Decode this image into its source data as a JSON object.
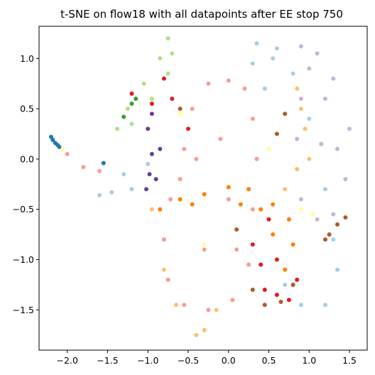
{
  "chart_data": {
    "type": "scatter",
    "title": "t-SNE on flow18 with all datapoints after EE stop 750",
    "xlabel": "",
    "ylabel": "",
    "xlim": [
      -2.35,
      1.72
    ],
    "ylim": [
      -1.9,
      1.32
    ],
    "grid": false,
    "legend": "none",
    "x_ticks": [
      -2.0,
      -1.5,
      -1.0,
      -0.5,
      0.0,
      0.5,
      1.0,
      1.5
    ],
    "x_tick_labels": [
      "−2.0",
      "−1.5",
      "−1.0",
      "−0.5",
      "0.0",
      "0.5",
      "1.0",
      "1.5"
    ],
    "y_ticks": [
      1.0,
      0.5,
      0.0,
      -0.5,
      -1.0,
      -1.5
    ],
    "y_tick_labels": [
      "1.0",
      "0.5",
      "0.0",
      "−0.5",
      "−1.0",
      "−1.5"
    ],
    "colors": {
      "salmon": "#fb9a99",
      "lightblue": "#a6cee3",
      "lavender": "#cab2d6",
      "lightgreen": "#b2df8a",
      "peach": "#fdbf6f",
      "orange": "#ff7f00",
      "red": "#e31a1c",
      "brown": "#b15928",
      "purple": "#6a3d9a",
      "green": "#33a02c",
      "blue": "#1f78b4",
      "yellow": "#ffff99"
    },
    "clusters": [
      {
        "color": "lightblue",
        "points": [
          [
            -1.2,
            -0.3
          ],
          [
            -1.45,
            -0.33
          ],
          [
            -1.6,
            -0.36
          ],
          [
            -1.3,
            -0.15
          ],
          [
            -1.0,
            -0.05
          ],
          [
            0.35,
            1.15
          ],
          [
            0.6,
            1.1
          ],
          [
            0.8,
            0.85
          ],
          [
            1.0,
            0.4
          ],
          [
            1.2,
            -0.3
          ],
          [
            1.3,
            -0.8
          ],
          [
            1.35,
            -1.1
          ],
          [
            1.2,
            -1.45
          ],
          [
            0.9,
            -1.45
          ],
          [
            0.7,
            -1.25
          ],
          [
            0.55,
            1.0
          ],
          [
            0.45,
            0.7
          ],
          [
            0.3,
            0.95
          ]
        ]
      },
      {
        "color": "lavender",
        "points": [
          [
            0.9,
            1.12
          ],
          [
            1.1,
            1.05
          ],
          [
            1.3,
            0.8
          ],
          [
            1.5,
            0.3
          ],
          [
            1.45,
            -0.2
          ],
          [
            1.3,
            -0.55
          ],
          [
            1.1,
            -0.6
          ],
          [
            0.9,
            -0.4
          ],
          [
            0.85,
            0.2
          ],
          [
            0.9,
            0.6
          ],
          [
            1.0,
            0.9
          ],
          [
            1.2,
            0.6
          ],
          [
            1.35,
            0.1
          ],
          [
            1.15,
            0.15
          ]
        ]
      },
      {
        "color": "lightgreen",
        "points": [
          [
            -0.75,
            1.2
          ],
          [
            -0.85,
            1.0
          ],
          [
            -1.05,
            0.75
          ],
          [
            -1.25,
            0.5
          ],
          [
            -1.38,
            0.3
          ],
          [
            -1.2,
            0.35
          ],
          [
            -0.95,
            0.6
          ],
          [
            -0.75,
            0.85
          ],
          [
            -0.7,
            1.05
          ]
        ]
      },
      {
        "color": "peach",
        "points": [
          [
            -0.95,
            -0.5
          ],
          [
            -0.8,
            -1.1
          ],
          [
            -0.65,
            -1.45
          ],
          [
            -0.4,
            -1.75
          ],
          [
            -0.3,
            -1.7
          ],
          [
            -0.15,
            -1.5
          ],
          [
            0.85,
            0.7
          ],
          [
            0.95,
            0.3
          ],
          [
            0.85,
            -0.1
          ],
          [
            0.7,
            -0.3
          ],
          [
            0.9,
            0.5
          ],
          [
            1.0,
            0.0
          ]
        ]
      },
      {
        "color": "salmon",
        "points": [
          [
            0.0,
            0.78
          ],
          [
            -0.25,
            0.75
          ],
          [
            -0.45,
            0.5
          ],
          [
            -0.55,
            0.1
          ],
          [
            -0.72,
            -0.4
          ],
          [
            -0.8,
            -0.8
          ],
          [
            -0.75,
            -1.2
          ],
          [
            -0.55,
            -1.45
          ],
          [
            -0.25,
            -1.5
          ],
          [
            0.05,
            -1.4
          ],
          [
            0.25,
            -1.05
          ],
          [
            0.3,
            -0.5
          ],
          [
            0.35,
            0.0
          ],
          [
            0.3,
            0.4
          ],
          [
            0.2,
            0.7
          ],
          [
            -0.1,
            0.2
          ],
          [
            0.0,
            -0.4
          ],
          [
            -0.3,
            -0.9
          ],
          [
            -0.4,
            0.0
          ],
          [
            0.1,
            -0.9
          ],
          [
            -0.6,
            -0.2
          ],
          [
            -1.8,
            -0.08
          ],
          [
            -2.0,
            0.05
          ],
          [
            -1.6,
            -0.12
          ]
        ]
      },
      {
        "color": "orange",
        "points": [
          [
            -0.85,
            -0.5
          ],
          [
            -0.6,
            -0.4
          ],
          [
            -0.3,
            -0.35
          ],
          [
            0.0,
            -0.28
          ],
          [
            0.25,
            -0.3
          ],
          [
            0.55,
            -0.45
          ],
          [
            0.75,
            -0.6
          ],
          [
            0.8,
            -0.85
          ],
          [
            0.7,
            -1.1
          ],
          [
            0.55,
            -0.75
          ],
          [
            0.4,
            -0.5
          ],
          [
            -0.45,
            -0.45
          ],
          [
            0.15,
            -0.45
          ]
        ]
      },
      {
        "color": "red",
        "points": [
          [
            0.3,
            -0.85
          ],
          [
            0.4,
            -1.05
          ],
          [
            0.45,
            -1.3
          ],
          [
            0.6,
            -1.35
          ],
          [
            0.75,
            -1.4
          ],
          [
            0.85,
            -1.2
          ],
          [
            0.6,
            -1.0
          ],
          [
            0.5,
            -0.6
          ],
          [
            -0.95,
            0.55
          ],
          [
            -0.8,
            0.8
          ],
          [
            -0.7,
            0.6
          ],
          [
            -1.2,
            0.65
          ],
          [
            -0.5,
            0.3
          ]
        ]
      },
      {
        "color": "brown",
        "points": [
          [
            0.3,
            -1.3
          ],
          [
            0.45,
            -1.45
          ],
          [
            0.65,
            -1.42
          ],
          [
            0.8,
            -1.25
          ],
          [
            1.2,
            -0.8
          ],
          [
            1.35,
            -0.65
          ],
          [
            1.45,
            -0.58
          ],
          [
            1.25,
            -0.75
          ],
          [
            0.7,
            0.45
          ],
          [
            0.6,
            0.25
          ],
          [
            -0.6,
            0.5
          ],
          [
            0.1,
            -0.7
          ]
        ]
      },
      {
        "color": "purple",
        "points": [
          [
            -1.0,
            0.3
          ],
          [
            -0.95,
            0.05
          ],
          [
            -0.98,
            -0.15
          ],
          [
            -1.02,
            -0.3
          ],
          [
            -0.9,
            -0.2
          ],
          [
            -0.85,
            0.1
          ],
          [
            -0.95,
            0.45
          ]
        ]
      },
      {
        "color": "green",
        "points": [
          [
            -1.3,
            0.42
          ],
          [
            -1.2,
            0.55
          ],
          [
            -1.15,
            0.6
          ]
        ]
      },
      {
        "color": "blue",
        "points": [
          [
            -2.2,
            0.22
          ],
          [
            -2.18,
            0.19
          ],
          [
            -2.15,
            0.16
          ],
          [
            -2.12,
            0.14
          ],
          [
            -2.1,
            0.12
          ],
          [
            -1.55,
            -0.04
          ]
        ]
      },
      {
        "color": "yellow",
        "points": [
          [
            -2.05,
            0.1
          ],
          [
            -0.6,
            0.45
          ],
          [
            0.9,
            -0.5
          ],
          [
            1.05,
            -0.55
          ],
          [
            -0.3,
            -0.85
          ],
          [
            0.5,
            0.1
          ]
        ]
      }
    ]
  }
}
